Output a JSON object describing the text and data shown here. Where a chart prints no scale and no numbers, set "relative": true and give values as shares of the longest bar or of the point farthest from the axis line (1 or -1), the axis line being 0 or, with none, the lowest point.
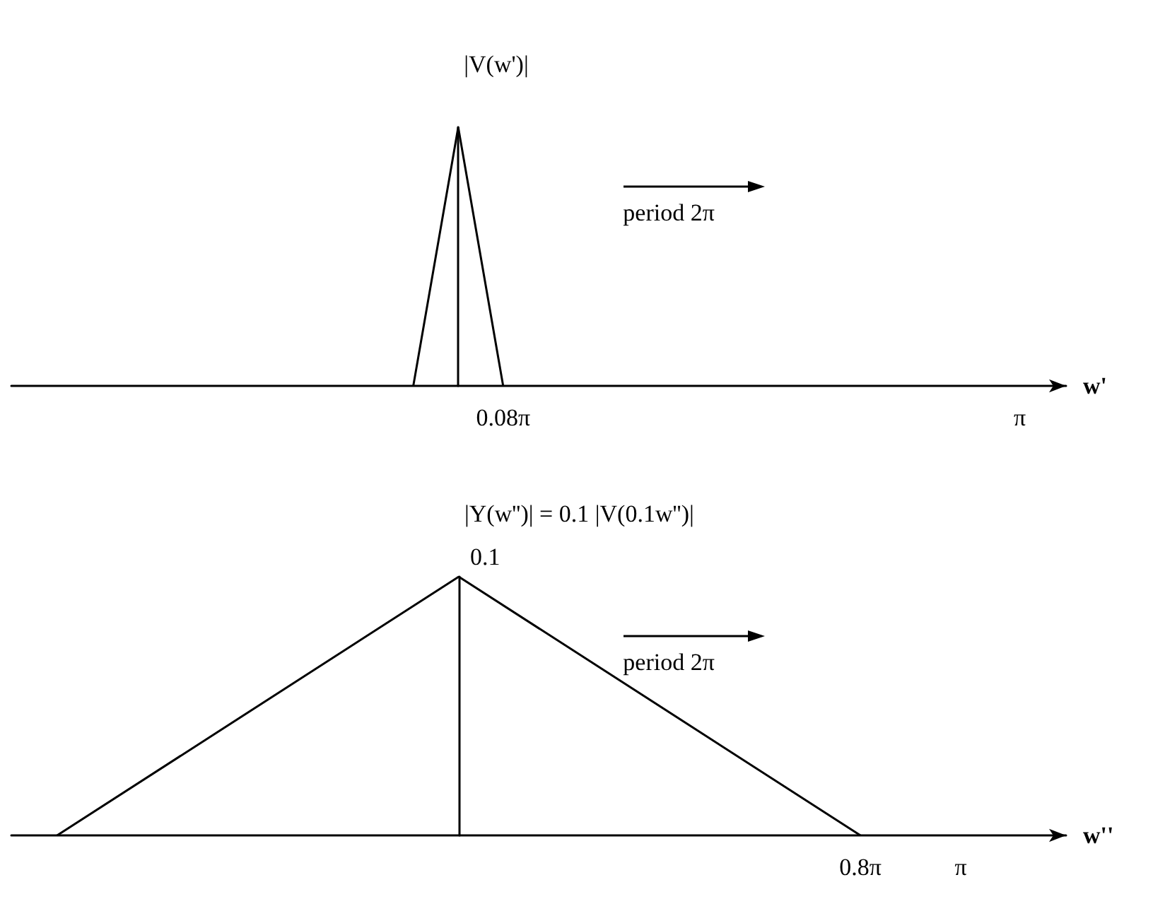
{
  "chart_data": [
    {
      "type": "line",
      "ylabel": "|V(w')|",
      "xlabel": "w'",
      "relative": true,
      "x": [
        -0.2513,
        0,
        0.2513
      ],
      "values": [
        0,
        1,
        0
      ],
      "color": "#000000",
      "marker": "none",
      "xlim": [
        -2.5,
        3.4
      ],
      "xticks": [
        {
          "value": 0.2513,
          "label": "0.08π"
        },
        {
          "value": 3.1416,
          "label": "π"
        }
      ],
      "annotations": [
        "period 2π"
      ]
    },
    {
      "type": "line",
      "ylabel": "|Y(w'')| = 0.1 |V(0.1w'')|",
      "xlabel": "w''",
      "x": [
        -2.5133,
        0,
        2.5133
      ],
      "values": [
        0,
        0.1,
        0
      ],
      "ylim": [
        0,
        0.1
      ],
      "value_labels": [
        null,
        "0.1",
        null
      ],
      "color": "#000000",
      "marker": "none",
      "xlim": [
        -2.8,
        3.8
      ],
      "xticks": [
        {
          "value": 2.5133,
          "label": "0.8π"
        },
        {
          "value": 3.1416,
          "label": "π"
        }
      ],
      "tick_labels": "x",
      "annotations": [
        "period 2π"
      ]
    }
  ]
}
